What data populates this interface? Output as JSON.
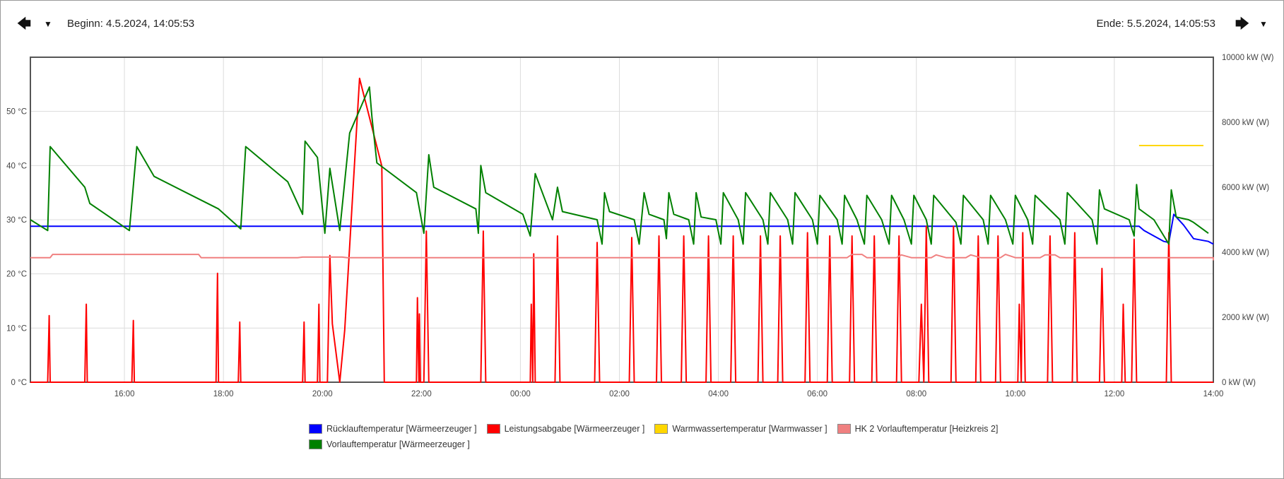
{
  "header": {
    "begin_label": "Beginn: 4.5.2024, 14:05:53",
    "end_label": "Ende: 5.5.2024, 14:05:53",
    "prev_icon": "arrow-left-icon",
    "next_icon": "arrow-right-icon",
    "menu_icon": "caret-down-icon"
  },
  "chart_data": {
    "type": "line",
    "title": "",
    "xlabel": "",
    "ylabel_left": "",
    "ylabel_right": "",
    "x_unit": "hours since 4.5.2024 14:00 (x ticks shown as clock time)",
    "xlim": [
      14.1,
      38.0
    ],
    "x_tick_values": [
      16,
      18,
      20,
      22,
      24,
      26,
      28,
      30,
      32,
      34,
      36,
      38
    ],
    "x_tick_labels": [
      "16:00",
      "18:00",
      "20:00",
      "22:00",
      "00:00",
      "02:00",
      "04:00",
      "06:00",
      "08:00",
      "10:00",
      "12:00",
      "14:00"
    ],
    "y_left": {
      "unit": "°C",
      "ylim": [
        0,
        60
      ],
      "ticks": [
        0,
        10,
        20,
        30,
        40,
        50
      ],
      "tick_labels": [
        "0 °C",
        "10 °C",
        "20 °C",
        "30 °C",
        "40 °C",
        "50 °C"
      ]
    },
    "y_right": {
      "unit": "kW (W)",
      "ylim": [
        0,
        10000
      ],
      "ticks": [
        0,
        2000,
        4000,
        6000,
        8000,
        10000
      ],
      "tick_labels": [
        "0 kW (W)",
        "2000 kW (W)",
        "4000 kW (W)",
        "6000 kW (W)",
        "8000 kW (W)",
        "10000 kW (W)"
      ]
    },
    "grid": true,
    "legend_position": "bottom-center",
    "series": [
      {
        "name": "Rücklauftemperatur [Wärmeerzeuger ]",
        "color": "#0000ff",
        "axis": "left",
        "points": [
          [
            14.1,
            28.8
          ],
          [
            36.5,
            28.8
          ],
          [
            36.6,
            28.0
          ],
          [
            36.8,
            27.0
          ],
          [
            37.0,
            26.0
          ],
          [
            37.1,
            25.8
          ],
          [
            37.2,
            31.0
          ],
          [
            37.4,
            29.0
          ],
          [
            37.6,
            26.5
          ],
          [
            37.9,
            26.0
          ],
          [
            38.0,
            25.5
          ]
        ]
      },
      {
        "name": "Leistungsabgabe [Wärmeerzeuger ]",
        "color": "#ff0000",
        "axis": "right",
        "points": [
          [
            14.1,
            0
          ],
          [
            14.45,
            0
          ],
          [
            14.48,
            2050
          ],
          [
            14.5,
            0
          ],
          [
            15.2,
            0
          ],
          [
            15.23,
            2400
          ],
          [
            15.25,
            0
          ],
          [
            16.15,
            0
          ],
          [
            16.18,
            1900
          ],
          [
            16.2,
            0
          ],
          [
            17.85,
            0
          ],
          [
            17.88,
            3350
          ],
          [
            17.9,
            0
          ],
          [
            18.3,
            0
          ],
          [
            18.33,
            1850
          ],
          [
            18.35,
            0
          ],
          [
            19.6,
            0
          ],
          [
            19.63,
            1850
          ],
          [
            19.65,
            0
          ],
          [
            19.9,
            0
          ],
          [
            19.93,
            2400
          ],
          [
            19.95,
            0
          ],
          [
            20.1,
            0
          ],
          [
            20.15,
            3900
          ],
          [
            20.2,
            1800
          ],
          [
            20.35,
            0
          ],
          [
            20.45,
            1600
          ],
          [
            20.75,
            9350
          ],
          [
            21.2,
            6650
          ],
          [
            21.25,
            0
          ],
          [
            21.9,
            0
          ],
          [
            21.92,
            2600
          ],
          [
            21.95,
            0
          ],
          [
            21.96,
            2100
          ],
          [
            21.98,
            0
          ],
          [
            22.05,
            0
          ],
          [
            22.1,
            4650
          ],
          [
            22.15,
            0
          ],
          [
            23.2,
            0
          ],
          [
            23.25,
            4650
          ],
          [
            23.3,
            0
          ],
          [
            24.2,
            0
          ],
          [
            24.22,
            2400
          ],
          [
            24.25,
            0
          ],
          [
            24.27,
            3950
          ],
          [
            24.3,
            0
          ],
          [
            24.7,
            0
          ],
          [
            24.75,
            4500
          ],
          [
            24.8,
            0
          ],
          [
            25.5,
            0
          ],
          [
            25.55,
            4300
          ],
          [
            25.6,
            0
          ],
          [
            26.2,
            0
          ],
          [
            26.25,
            4450
          ],
          [
            26.3,
            0
          ],
          [
            26.75,
            0
          ],
          [
            26.8,
            4500
          ],
          [
            26.85,
            0
          ],
          [
            27.25,
            0
          ],
          [
            27.3,
            4500
          ],
          [
            27.35,
            0
          ],
          [
            27.75,
            0
          ],
          [
            27.8,
            4500
          ],
          [
            27.85,
            0
          ],
          [
            28.25,
            0
          ],
          [
            28.3,
            4500
          ],
          [
            28.35,
            0
          ],
          [
            28.8,
            0
          ],
          [
            28.85,
            4500
          ],
          [
            28.9,
            0
          ],
          [
            29.2,
            0
          ],
          [
            29.25,
            4500
          ],
          [
            29.3,
            0
          ],
          [
            29.75,
            0
          ],
          [
            29.8,
            4600
          ],
          [
            29.85,
            0
          ],
          [
            30.2,
            0
          ],
          [
            30.25,
            4500
          ],
          [
            30.3,
            0
          ],
          [
            30.65,
            0
          ],
          [
            30.7,
            4500
          ],
          [
            30.75,
            0
          ],
          [
            31.1,
            0
          ],
          [
            31.15,
            4500
          ],
          [
            31.2,
            0
          ],
          [
            31.6,
            0
          ],
          [
            31.65,
            4500
          ],
          [
            31.7,
            0
          ],
          [
            32.05,
            0
          ],
          [
            32.1,
            2400
          ],
          [
            32.15,
            0
          ],
          [
            32.2,
            4800
          ],
          [
            32.25,
            0
          ],
          [
            32.7,
            0
          ],
          [
            32.75,
            4800
          ],
          [
            32.8,
            0
          ],
          [
            33.2,
            0
          ],
          [
            33.25,
            4500
          ],
          [
            33.3,
            0
          ],
          [
            33.6,
            0
          ],
          [
            33.65,
            4500
          ],
          [
            33.7,
            0
          ],
          [
            34.05,
            0
          ],
          [
            34.08,
            2400
          ],
          [
            34.12,
            0
          ],
          [
            34.15,
            4600
          ],
          [
            34.2,
            0
          ],
          [
            34.65,
            0
          ],
          [
            34.7,
            4500
          ],
          [
            34.75,
            0
          ],
          [
            35.15,
            0
          ],
          [
            35.2,
            4600
          ],
          [
            35.25,
            0
          ],
          [
            35.7,
            0
          ],
          [
            35.75,
            3500
          ],
          [
            35.8,
            0
          ],
          [
            36.15,
            0
          ],
          [
            36.18,
            2400
          ],
          [
            36.22,
            0
          ],
          [
            36.35,
            0
          ],
          [
            36.4,
            4400
          ],
          [
            36.45,
            0
          ],
          [
            37.05,
            0
          ],
          [
            37.1,
            4600
          ],
          [
            37.15,
            0
          ],
          [
            38.0,
            0
          ]
        ]
      },
      {
        "name": "Warmwassertemperatur [Warmwasser ]",
        "color": "#ffd700",
        "axis": "left",
        "points": [
          [
            36.5,
            43.7
          ],
          [
            37.8,
            43.7
          ]
        ]
      },
      {
        "name": "HK 2 Vorlauftemperatur [Heizkreis 2]",
        "color": "#f08080",
        "axis": "left",
        "points": [
          [
            14.1,
            23.0
          ],
          [
            14.5,
            23.0
          ],
          [
            14.55,
            23.6
          ],
          [
            17.5,
            23.6
          ],
          [
            17.55,
            23.0
          ],
          [
            19.5,
            23.0
          ],
          [
            19.6,
            23.1
          ],
          [
            20.4,
            23.1
          ],
          [
            20.5,
            23.0
          ],
          [
            30.6,
            23.0
          ],
          [
            30.7,
            23.6
          ],
          [
            30.9,
            23.6
          ],
          [
            31.0,
            23.0
          ],
          [
            31.6,
            23.0
          ],
          [
            31.7,
            23.5
          ],
          [
            31.9,
            23.0
          ],
          [
            32.3,
            23.0
          ],
          [
            32.4,
            23.5
          ],
          [
            32.6,
            23.0
          ],
          [
            33.0,
            23.0
          ],
          [
            33.1,
            23.5
          ],
          [
            33.3,
            23.0
          ],
          [
            33.7,
            23.0
          ],
          [
            33.8,
            23.6
          ],
          [
            34.0,
            23.0
          ],
          [
            34.5,
            23.0
          ],
          [
            34.6,
            23.5
          ],
          [
            34.8,
            23.5
          ],
          [
            34.9,
            23.0
          ],
          [
            38.0,
            23.0
          ],
          [
            38.0,
            22.5
          ]
        ]
      },
      {
        "name": "Vorlauftemperatur [Wärmeerzeuger ]",
        "color": "#008000",
        "axis": "left",
        "points": [
          [
            14.1,
            30.0
          ],
          [
            14.45,
            28.0
          ],
          [
            14.5,
            43.5
          ],
          [
            15.2,
            36.0
          ],
          [
            15.3,
            33.0
          ],
          [
            16.1,
            28.0
          ],
          [
            16.25,
            43.5
          ],
          [
            16.6,
            38.0
          ],
          [
            17.9,
            32.0
          ],
          [
            18.35,
            28.3
          ],
          [
            18.45,
            43.5
          ],
          [
            19.3,
            37.0
          ],
          [
            19.6,
            31.0
          ],
          [
            19.65,
            44.5
          ],
          [
            19.9,
            41.5
          ],
          [
            20.05,
            27.5
          ],
          [
            20.15,
            39.5
          ],
          [
            20.35,
            28.0
          ],
          [
            20.55,
            46.0
          ],
          [
            20.95,
            54.5
          ],
          [
            21.0,
            49.0
          ],
          [
            21.1,
            40.5
          ],
          [
            21.9,
            35.0
          ],
          [
            22.05,
            27.5
          ],
          [
            22.15,
            42.0
          ],
          [
            22.25,
            36.0
          ],
          [
            23.1,
            32.0
          ],
          [
            23.15,
            27.5
          ],
          [
            23.2,
            40.0
          ],
          [
            23.3,
            35.0
          ],
          [
            24.05,
            31.0
          ],
          [
            24.2,
            27.0
          ],
          [
            24.3,
            38.5
          ],
          [
            24.65,
            30.0
          ],
          [
            24.75,
            36.0
          ],
          [
            24.85,
            31.5
          ],
          [
            25.55,
            30.0
          ],
          [
            25.65,
            25.5
          ],
          [
            25.7,
            35.0
          ],
          [
            25.8,
            31.5
          ],
          [
            26.3,
            30.0
          ],
          [
            26.4,
            25.5
          ],
          [
            26.5,
            35.0
          ],
          [
            26.6,
            31.0
          ],
          [
            26.9,
            30.0
          ],
          [
            26.95,
            26.5
          ],
          [
            27.0,
            35.0
          ],
          [
            27.1,
            31.0
          ],
          [
            27.4,
            30.0
          ],
          [
            27.5,
            25.5
          ],
          [
            27.55,
            35.0
          ],
          [
            27.65,
            30.5
          ],
          [
            27.95,
            30.0
          ],
          [
            28.05,
            25.5
          ],
          [
            28.1,
            35.0
          ],
          [
            28.4,
            30.0
          ],
          [
            28.5,
            25.5
          ],
          [
            28.55,
            35.0
          ],
          [
            28.9,
            30.0
          ],
          [
            29.0,
            25.5
          ],
          [
            29.05,
            35.0
          ],
          [
            29.4,
            30.0
          ],
          [
            29.5,
            25.5
          ],
          [
            29.55,
            35.0
          ],
          [
            29.9,
            30.0
          ],
          [
            30.0,
            25.5
          ],
          [
            30.05,
            34.5
          ],
          [
            30.4,
            30.0
          ],
          [
            30.5,
            25.5
          ],
          [
            30.55,
            34.5
          ],
          [
            30.8,
            30.0
          ],
          [
            30.95,
            25.5
          ],
          [
            31.0,
            34.5
          ],
          [
            31.3,
            30.0
          ],
          [
            31.45,
            25.5
          ],
          [
            31.5,
            34.5
          ],
          [
            31.75,
            30.0
          ],
          [
            31.9,
            25.5
          ],
          [
            31.95,
            34.5
          ],
          [
            32.2,
            30.0
          ],
          [
            32.3,
            25.5
          ],
          [
            32.35,
            34.5
          ],
          [
            32.8,
            29.5
          ],
          [
            32.9,
            25.5
          ],
          [
            32.95,
            34.5
          ],
          [
            33.35,
            30.0
          ],
          [
            33.45,
            25.5
          ],
          [
            33.5,
            34.5
          ],
          [
            33.8,
            30.0
          ],
          [
            33.95,
            25.5
          ],
          [
            34.0,
            34.5
          ],
          [
            34.25,
            30.0
          ],
          [
            34.35,
            25.5
          ],
          [
            34.4,
            34.5
          ],
          [
            34.9,
            30.0
          ],
          [
            35.0,
            25.5
          ],
          [
            35.05,
            35.0
          ],
          [
            35.55,
            30.0
          ],
          [
            35.65,
            25.5
          ],
          [
            35.7,
            35.5
          ],
          [
            35.8,
            32.0
          ],
          [
            36.3,
            30.0
          ],
          [
            36.4,
            27.0
          ],
          [
            36.45,
            36.5
          ],
          [
            36.5,
            32.0
          ],
          [
            36.8,
            30.0
          ],
          [
            37.0,
            27.0
          ],
          [
            37.1,
            25.5
          ],
          [
            37.15,
            35.5
          ],
          [
            37.25,
            30.5
          ],
          [
            37.5,
            30.0
          ],
          [
            37.6,
            29.5
          ],
          [
            37.9,
            27.5
          ]
        ]
      }
    ]
  }
}
